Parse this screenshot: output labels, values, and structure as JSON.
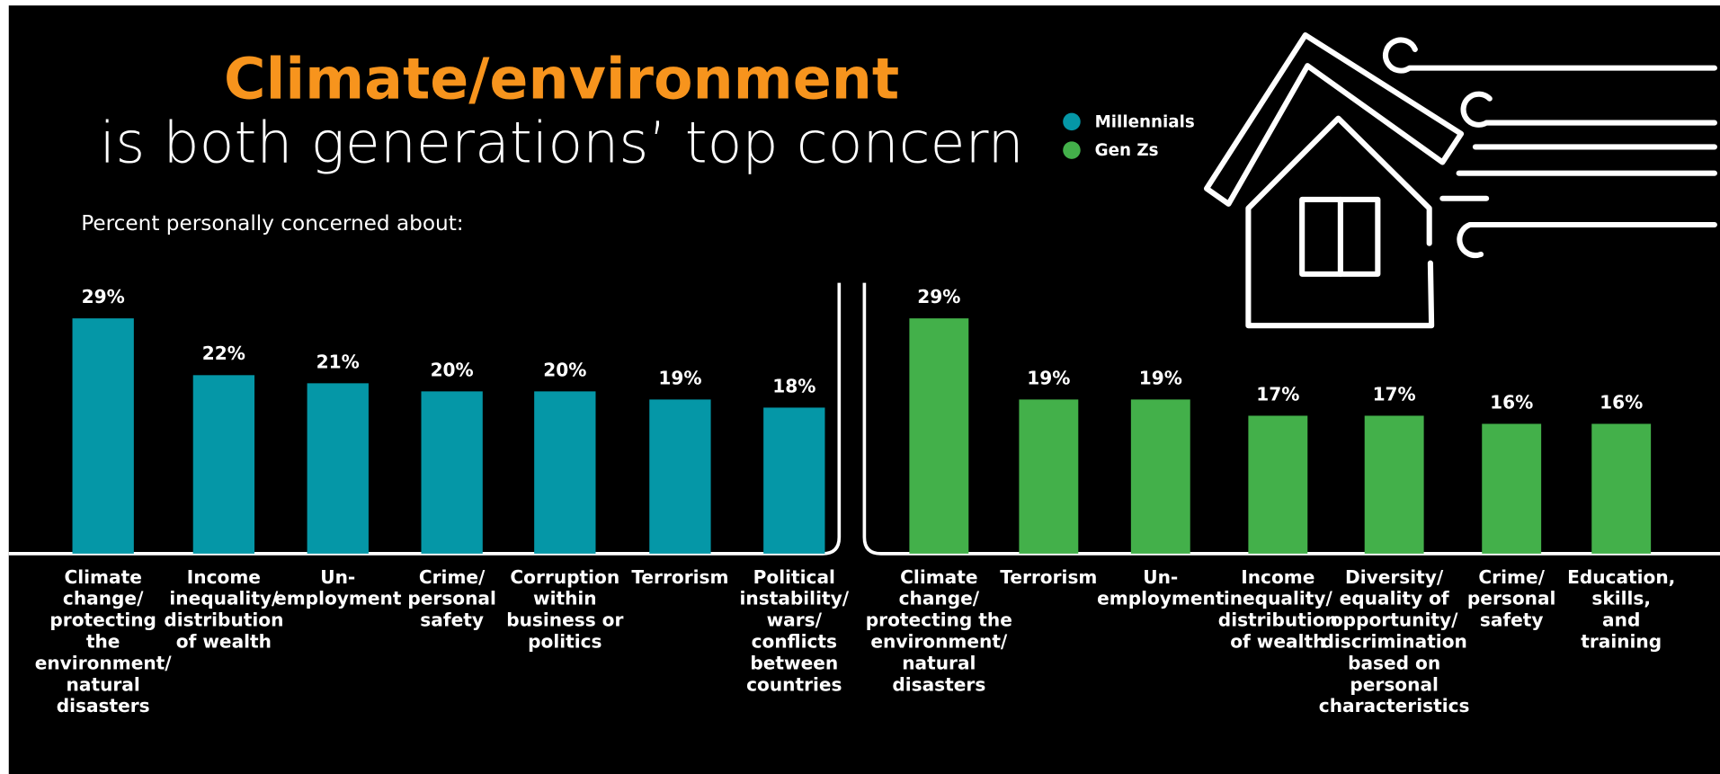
{
  "header": {
    "title_highlight": "Climate/environment",
    "title": "is both generations’ top concern"
  },
  "subtitle": "Percent personally concerned about:",
  "chart_data": [
    {
      "type": "bar",
      "categories": [
        "Climate\nchange/\nprotecting\nthe\nenvironment/\nnatural\ndisasters",
        "Income\ninequality/\ndistribution\nof wealth",
        "Un-\nemployment",
        "Crime/\npersonal\nsafety",
        "Corruption\nwithin\nbusiness or\npolitics",
        "Terrorism",
        "Political\ninstability/\nwars/\nconflicts\nbetween\ncountries"
      ],
      "series": [
        {
          "name": "Millennials",
          "color": "#0597a7",
          "values": [
            29,
            22,
            21,
            20,
            20,
            19,
            18
          ],
          "value_labels": [
            "29%",
            "22%",
            "21%",
            "20%",
            "20%",
            "19%",
            "18%"
          ]
        }
      ]
    },
    {
      "type": "bar",
      "categories": [
        "Climate\nchange/\nprotecting the\nenvironment/\nnatural\ndisasters",
        "Terrorism",
        "Un-\nemployment",
        "Income\ninequality/\ndistribution\nof wealth",
        "Diversity/\nequality of\nopportunity/\ndiscrimination\nbased on\npersonal\ncharacteristics",
        "Crime/\npersonal\nsafety",
        "Education,\nskills,\nand\ntraining"
      ],
      "series": [
        {
          "name": "Gen Zs",
          "color": "#43b04a",
          "values": [
            29,
            19,
            19,
            17,
            17,
            16,
            16
          ],
          "value_labels": [
            "29%",
            "19%",
            "19%",
            "17%",
            "17%",
            "16%",
            "16%"
          ]
        }
      ]
    }
  ]
}
